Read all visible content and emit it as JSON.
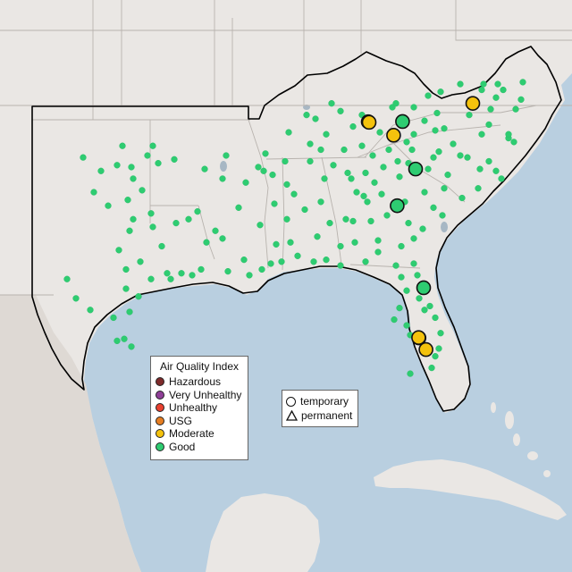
{
  "colors": {
    "water": "#b9cfe0",
    "land": "#eae7e4",
    "land_shaded": "#ded9d4",
    "state_border": "#b8b3ae",
    "region_outline": "#000000",
    "lake": "#a7b7c4"
  },
  "aqi_legend": {
    "title": "Air Quality Index",
    "items": [
      {
        "label": "Hazardous",
        "color": "#7e2b2b"
      },
      {
        "label": "Very Unhealthy",
        "color": "#8f3f97"
      },
      {
        "label": "Unhealthy",
        "color": "#e8402f"
      },
      {
        "label": "USG",
        "color": "#e67e22"
      },
      {
        "label": "Moderate",
        "color": "#f4c20d"
      },
      {
        "label": "Good",
        "color": "#2ecc71"
      }
    ]
  },
  "type_legend": {
    "items": [
      {
        "label": "temporary",
        "shape": "circle"
      },
      {
        "label": "permanent",
        "shape": "triangle"
      }
    ]
  },
  "monitors": {
    "large_sensor_sites": [
      {
        "lon": -84.15,
        "lat": 37.65,
        "category": "Moderate"
      },
      {
        "lon": -84.1,
        "lat": 37.62,
        "category": "Moderate"
      },
      {
        "lon": -82.23,
        "lat": 37.66,
        "category": "Good"
      },
      {
        "lon": -78.3,
        "lat": 38.6,
        "category": "Moderate"
      },
      {
        "lon": -82.73,
        "lat": 36.95,
        "category": "Moderate"
      },
      {
        "lon": -81.5,
        "lat": 35.2,
        "category": "Good"
      },
      {
        "lon": -82.53,
        "lat": 33.3,
        "category": "Good"
      },
      {
        "lon": -81.05,
        "lat": 29.05,
        "category": "Good"
      },
      {
        "lon": -81.31,
        "lat": 26.45,
        "category": "Moderate"
      },
      {
        "lon": -80.92,
        "lat": 25.85,
        "category": "Moderate"
      },
      {
        "lon": -81.33,
        "lat": 26.47,
        "category": "Moderate"
      }
    ],
    "small_sensor_sites": [
      [
        -100.1,
        35.8
      ],
      [
        -97.9,
        36.4
      ],
      [
        -96.2,
        36.4
      ],
      [
        -99.1,
        35.1
      ],
      [
        -98.2,
        35.4
      ],
      [
        -96.5,
        35.9
      ],
      [
        -97.4,
        35.3
      ],
      [
        -97.3,
        34.7
      ],
      [
        -96.8,
        34.1
      ],
      [
        -95.9,
        35.5
      ],
      [
        -95.0,
        35.7
      ],
      [
        -99.5,
        34.0
      ],
      [
        -98.7,
        33.3
      ],
      [
        -97.6,
        33.6
      ],
      [
        -96.3,
        32.9
      ],
      [
        -97.3,
        32.6
      ],
      [
        -97.5,
        32.0
      ],
      [
        -96.2,
        32.2
      ],
      [
        -94.9,
        32.4
      ],
      [
        -94.2,
        32.6
      ],
      [
        -95.7,
        31.2
      ],
      [
        -98.1,
        31.0
      ],
      [
        -97.7,
        30.0
      ],
      [
        -96.9,
        30.4
      ],
      [
        -97.7,
        29.0
      ],
      [
        -97.0,
        28.6
      ],
      [
        -96.3,
        29.5
      ],
      [
        -95.4,
        29.8
      ],
      [
        -95.2,
        29.5
      ],
      [
        -94.6,
        29.8
      ],
      [
        -94.0,
        29.7
      ],
      [
        -93.5,
        30.0
      ],
      [
        -99.7,
        27.9
      ],
      [
        -98.4,
        27.5
      ],
      [
        -97.5,
        27.8
      ],
      [
        -97.8,
        26.4
      ],
      [
        -98.2,
        26.3
      ],
      [
        -97.4,
        26.0
      ],
      [
        -100.5,
        28.5
      ],
      [
        -101.0,
        29.5
      ],
      [
        -93.7,
        33.0
      ],
      [
        -92.3,
        34.7
      ],
      [
        -91.0,
        34.5
      ],
      [
        -90.3,
        35.3
      ],
      [
        -92.1,
        35.9
      ],
      [
        -93.3,
        35.2
      ],
      [
        -91.4,
        33.2
      ],
      [
        -92.7,
        32.0
      ],
      [
        -91.1,
        30.5
      ],
      [
        -90.1,
        30.0
      ],
      [
        -89.6,
        30.3
      ],
      [
        -90.8,
        29.7
      ],
      [
        -92.0,
        29.9
      ],
      [
        -93.2,
        31.4
      ],
      [
        -92.3,
        31.6
      ],
      [
        -89.0,
        30.4
      ],
      [
        -88.1,
        30.7
      ],
      [
        -87.2,
        30.4
      ],
      [
        -86.5,
        30.5
      ],
      [
        -85.7,
        30.2
      ],
      [
        -84.3,
        30.4
      ],
      [
        -83.6,
        30.9
      ],
      [
        -82.6,
        30.2
      ],
      [
        -81.6,
        30.3
      ],
      [
        -81.4,
        29.7
      ],
      [
        -82.3,
        29.6
      ],
      [
        -81.3,
        28.5
      ],
      [
        -80.7,
        28.1
      ],
      [
        -82.4,
        28.0
      ],
      [
        -82.7,
        27.4
      ],
      [
        -81.8,
        26.6
      ],
      [
        -80.4,
        27.5
      ],
      [
        -80.1,
        26.7
      ],
      [
        -80.2,
        25.9
      ],
      [
        -80.4,
        25.5
      ],
      [
        -81.8,
        24.6
      ],
      [
        -82.0,
        27.1
      ],
      [
        -81.0,
        27.9
      ],
      [
        -82.0,
        28.9
      ],
      [
        -80.6,
        24.9
      ],
      [
        -88.5,
        31.4
      ],
      [
        -88.7,
        32.6
      ],
      [
        -89.4,
        33.4
      ],
      [
        -90.2,
        32.3
      ],
      [
        -89.3,
        31.3
      ],
      [
        -88.3,
        33.9
      ],
      [
        -88.7,
        34.4
      ],
      [
        -89.5,
        34.9
      ],
      [
        -90.0,
        35.1
      ],
      [
        -87.7,
        33.1
      ],
      [
        -86.8,
        33.5
      ],
      [
        -86.3,
        32.4
      ],
      [
        -85.4,
        32.6
      ],
      [
        -86.6,
        34.7
      ],
      [
        -85.7,
        31.2
      ],
      [
        -87.0,
        31.7
      ],
      [
        -85.1,
        34.7
      ],
      [
        -84.4,
        33.8
      ],
      [
        -84.2,
        33.5
      ],
      [
        -83.4,
        33.9
      ],
      [
        -84.0,
        32.5
      ],
      [
        -83.6,
        31.5
      ],
      [
        -82.3,
        31.2
      ],
      [
        -81.1,
        32.1
      ],
      [
        -81.9,
        32.4
      ],
      [
        -82.1,
        33.5
      ],
      [
        -85.0,
        32.5
      ],
      [
        -84.9,
        31.4
      ],
      [
        -80.0,
        32.8
      ],
      [
        -81.0,
        34.0
      ],
      [
        -82.4,
        34.8
      ],
      [
        -79.9,
        34.2
      ],
      [
        -78.9,
        33.7
      ],
      [
        -80.8,
        35.2
      ],
      [
        -80.2,
        36.1
      ],
      [
        -79.0,
        35.9
      ],
      [
        -78.6,
        35.8
      ],
      [
        -77.9,
        35.2
      ],
      [
        -77.0,
        35.1
      ],
      [
        -78.0,
        34.2
      ],
      [
        -76.7,
        34.7
      ],
      [
        -77.4,
        35.6
      ],
      [
        -82.5,
        35.6
      ],
      [
        -83.3,
        35.3
      ],
      [
        -81.7,
        36.2
      ],
      [
        -79.4,
        36.5
      ],
      [
        -76.3,
        36.8
      ],
      [
        -77.4,
        37.5
      ],
      [
        -79.9,
        37.3
      ],
      [
        -78.5,
        38.0
      ],
      [
        -77.3,
        38.3
      ],
      [
        -76.6,
        39.3
      ],
      [
        -77.0,
        38.9
      ],
      [
        -75.9,
        38.3
      ],
      [
        -75.5,
        39.7
      ],
      [
        -77.7,
        39.6
      ],
      [
        -76.3,
        37.0
      ],
      [
        -80.4,
        37.2
      ],
      [
        -81.6,
        37.0
      ],
      [
        -82.0,
        36.6
      ],
      [
        -83.9,
        35.9
      ],
      [
        -84.3,
        35.0
      ],
      [
        -85.3,
        35.0
      ],
      [
        -86.8,
        36.2
      ],
      [
        -86.1,
        35.4
      ],
      [
        -87.4,
        35.6
      ],
      [
        -88.8,
        35.6
      ],
      [
        -89.9,
        36.0
      ],
      [
        -87.4,
        36.5
      ],
      [
        -85.5,
        36.2
      ],
      [
        -84.5,
        36.4
      ],
      [
        -83.0,
        36.2
      ],
      [
        -84.5,
        38.0
      ],
      [
        -85.7,
        38.2
      ],
      [
        -86.5,
        37.0
      ],
      [
        -87.1,
        37.8
      ],
      [
        -88.6,
        37.1
      ],
      [
        -82.8,
        38.4
      ],
      [
        -83.5,
        37.1
      ],
      [
        -85.0,
        37.4
      ],
      [
        -81.6,
        38.4
      ],
      [
        -80.1,
        39.2
      ],
      [
        -79.0,
        39.6
      ],
      [
        -80.8,
        39.0
      ],
      [
        -82.6,
        38.6
      ],
      [
        -81.0,
        37.7
      ],
      [
        -86.2,
        38.6
      ],
      [
        -87.6,
        38.0
      ],
      [
        -80.3,
        38.1
      ],
      [
        -77.8,
        37.0
      ],
      [
        -76.0,
        36.6
      ],
      [
        -77.8,
        39.3
      ],
      [
        -76.9,
        39.6
      ],
      [
        -75.6,
        38.8
      ],
      [
        -83.8,
        34.5
      ],
      [
        -84.8,
        34.0
      ],
      [
        -83.1,
        32.8
      ],
      [
        -81.6,
        31.6
      ],
      [
        -80.5,
        33.2
      ],
      [
        -79.7,
        34.9
      ],
      [
        -81.9,
        35.5
      ],
      [
        -80.5,
        35.8
      ]
    ]
  }
}
